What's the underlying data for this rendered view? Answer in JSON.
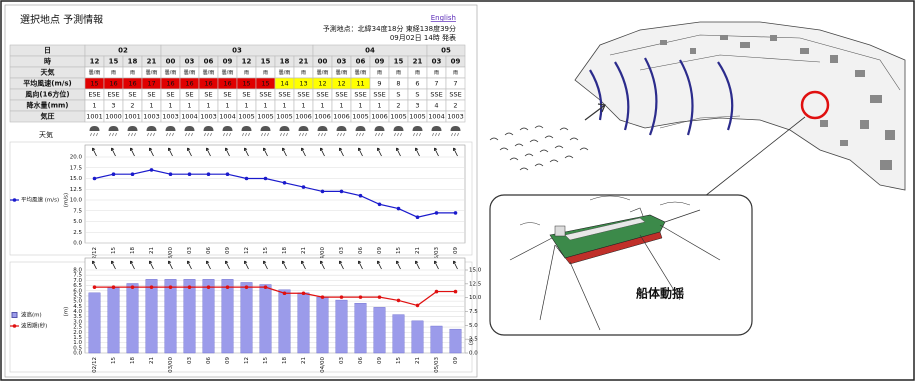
{
  "header": {
    "title": "選択地点 予測情報",
    "english": "English",
    "location": "予測地点：北緯34度18分 東経138度39分",
    "issued": "09月02日 14時 発表"
  },
  "table": {
    "row_labels": [
      "日",
      "時",
      "天気",
      "平均風速(m/s)",
      "風向(16方位)",
      "降水量(mm)",
      "気圧"
    ],
    "dates": [
      "02",
      "03",
      "04",
      "05"
    ],
    "hours": [
      "12",
      "15",
      "18",
      "21",
      "00",
      "03",
      "06",
      "09",
      "12",
      "15",
      "18",
      "21",
      "00",
      "03",
      "06",
      "09",
      "15",
      "21",
      "03",
      "09"
    ],
    "weather": [
      "曇/雨",
      "雨",
      "雨",
      "曇/雨",
      "曇/雨",
      "曇/雨",
      "曇/雨",
      "曇/雨",
      "雨",
      "雨",
      "曇/雨",
      "雨",
      "曇/雨",
      "曇/雨",
      "曇/雨",
      "雨",
      "雨",
      "雨",
      "雨",
      "雨"
    ],
    "wind_speed": [
      15,
      16,
      16,
      17,
      16,
      16,
      16,
      16,
      15,
      15,
      14,
      13,
      12,
      12,
      11,
      9,
      8,
      6,
      7,
      7
    ],
    "wind_dir": [
      "ESE",
      "ESE",
      "SE",
      "SE",
      "SE",
      "SE",
      "SE",
      "SE",
      "SE",
      "SSE",
      "SSE",
      "SSE",
      "SSE",
      "SSE",
      "SSE",
      "SSE",
      "S",
      "S",
      "SSE",
      "SSE"
    ],
    "precip": [
      1,
      3,
      2,
      1,
      1,
      1,
      1,
      1,
      1,
      1,
      1,
      1,
      1,
      1,
      1,
      1,
      2,
      3,
      4,
      2
    ],
    "pressure": [
      1001,
      1000,
      1001,
      1003,
      1003,
      1004,
      1003,
      1004,
      1005,
      1005,
      1005,
      1006,
      1006,
      1006,
      1005,
      1006,
      1005,
      1005,
      1004,
      1003
    ]
  },
  "weather_label": "天気",
  "chart_data": [
    {
      "type": "line",
      "ylabel": "(m/s)",
      "categories": [
        "02/12",
        "15",
        "18",
        "21",
        "03/00",
        "03",
        "06",
        "09",
        "12",
        "15",
        "18",
        "21",
        "04/00",
        "03",
        "06",
        "09",
        "15",
        "21",
        "05/03",
        "09"
      ],
      "series": [
        {
          "name": "平均風速 (m/s)",
          "color": "#1a1acc",
          "values": [
            15,
            16,
            16,
            17,
            16,
            16,
            16,
            16,
            15,
            15,
            14,
            13,
            12,
            12,
            11,
            9,
            8,
            6,
            7,
            7
          ]
        }
      ],
      "ylim": [
        0,
        20
      ],
      "yticks": [
        {
          "value": 0,
          "label": "0.0"
        },
        {
          "value": 2.5,
          "label": "2.5"
        },
        {
          "value": 5,
          "label": "5.0"
        },
        {
          "value": 7.5,
          "label": "7.5"
        },
        {
          "value": 10,
          "label": "10.0"
        },
        {
          "value": 12.5,
          "label": "12.5"
        },
        {
          "value": 15,
          "label": "15.0"
        },
        {
          "value": 17.5,
          "label": "17.5"
        },
        {
          "value": 20,
          "label": "20.0"
        }
      ],
      "grid": true
    },
    {
      "type": "bar",
      "ylabel": "(m)",
      "y2label": "(s)",
      "categories": [
        "02/12",
        "15",
        "18",
        "21",
        "03/00",
        "03",
        "06",
        "09",
        "12",
        "15",
        "18",
        "21",
        "04/00",
        "03",
        "06",
        "09",
        "15",
        "21",
        "05/03",
        "09"
      ],
      "series": [
        {
          "name": "波高(m)",
          "type": "bar",
          "color": "#9b9bea",
          "values": [
            5.8,
            6.3,
            6.7,
            7.1,
            7.1,
            7.1,
            7.1,
            7.1,
            6.8,
            6.6,
            6.1,
            5.8,
            5.4,
            5.1,
            4.8,
            4.4,
            3.7,
            3.1,
            2.6,
            2.3
          ]
        },
        {
          "name": "波周期(秒)",
          "type": "line",
          "axis": "y2",
          "color": "#e01010",
          "values": [
            11.9,
            11.9,
            11.9,
            11.9,
            11.9,
            11.9,
            11.9,
            11.9,
            11.9,
            11.9,
            10.8,
            10.8,
            10.1,
            10.1,
            10.1,
            10.1,
            9.5,
            8.6,
            11.1,
            11.1
          ]
        }
      ],
      "ylim": [
        0,
        8
      ],
      "yticks": [
        {
          "value": 0,
          "label": "0.0"
        },
        {
          "value": 0.5,
          "label": "0.5"
        },
        {
          "value": 1,
          "label": "1.0"
        },
        {
          "value": 1.5,
          "label": "1.5"
        },
        {
          "value": 2,
          "label": "2.0"
        },
        {
          "value": 2.5,
          "label": "2.5"
        },
        {
          "value": 3,
          "label": "3.0"
        },
        {
          "value": 3.5,
          "label": "3.5"
        },
        {
          "value": 4,
          "label": "4.0"
        },
        {
          "value": 4.5,
          "label": "4.5"
        },
        {
          "value": 5,
          "label": "5.0"
        },
        {
          "value": 5.5,
          "label": "5.5"
        },
        {
          "value": 6,
          "label": "6.0"
        },
        {
          "value": 6.5,
          "label": "6.5"
        },
        {
          "value": 7,
          "label": "7.0"
        },
        {
          "value": 7.5,
          "label": "7.5"
        },
        {
          "value": 8,
          "label": "8.0"
        }
      ],
      "y2lim": [
        0,
        15
      ],
      "y2ticks": [
        {
          "value": 0,
          "label": "0.0"
        },
        {
          "value": 2.5,
          "label": "2.5"
        },
        {
          "value": 5,
          "label": "5.0"
        },
        {
          "value": 7.5,
          "label": "7.5"
        },
        {
          "value": 10,
          "label": "10.0"
        },
        {
          "value": 12.5,
          "label": "12.5"
        },
        {
          "value": 15,
          "label": "15.0"
        }
      ],
      "grid": true
    }
  ],
  "illustration": {
    "label": "船体動揺"
  }
}
